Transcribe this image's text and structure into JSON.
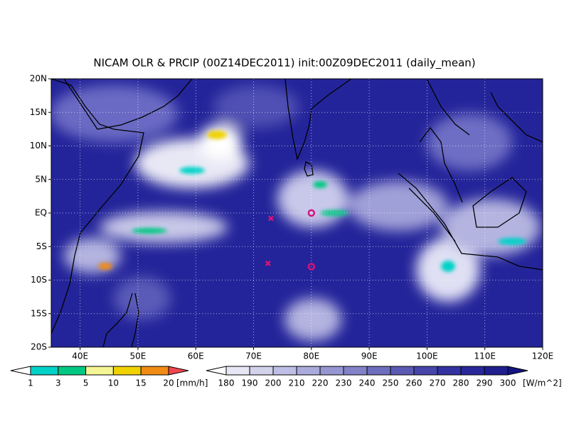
{
  "title": "NICAM OLR & PRCIP (00Z14DEC2011) init:00Z09DEC2011 (daily_mean)",
  "map": {
    "lonlim": [
      35,
      120
    ],
    "latlim": [
      -20,
      20
    ],
    "lonticks": [
      {
        "value": 40,
        "label": "40E"
      },
      {
        "value": 50,
        "label": "50E"
      },
      {
        "value": 60,
        "label": "60E"
      },
      {
        "value": 70,
        "label": "70E"
      },
      {
        "value": 80,
        "label": "80E"
      },
      {
        "value": 90,
        "label": "90E"
      },
      {
        "value": 100,
        "label": "100E"
      },
      {
        "value": 110,
        "label": "110E"
      },
      {
        "value": 120,
        "label": "120E"
      }
    ],
    "latticks": [
      {
        "value": 20,
        "label": "20N"
      },
      {
        "value": 15,
        "label": "15N"
      },
      {
        "value": 10,
        "label": "10N"
      },
      {
        "value": 5,
        "label": "5N"
      },
      {
        "value": 0,
        "label": "EQ"
      },
      {
        "value": -5,
        "label": "5S"
      },
      {
        "value": -10,
        "label": "10S"
      },
      {
        "value": -15,
        "label": "15S"
      },
      {
        "value": -20,
        "label": "20S"
      }
    ],
    "grid": true,
    "markers": [
      {
        "symbol": "x",
        "lon": 73,
        "lat": -0.8
      },
      {
        "symbol": "x",
        "lon": 72.5,
        "lat": -7.5
      },
      {
        "symbol": "o",
        "lon": 80,
        "lat": 0
      },
      {
        "symbol": "o",
        "lon": 80,
        "lat": -8
      }
    ],
    "marker_color": "#d4147a"
  },
  "precip_colorbar": {
    "levels": [
      1,
      3,
      5,
      10,
      15,
      20
    ],
    "unit": "[mm/h]",
    "colors": [
      "#ffffff",
      "#00d2c8",
      "#00c882",
      "#f5f596",
      "#f0d200",
      "#f08c14",
      "#f04650"
    ]
  },
  "olr_colorbar": {
    "levels": [
      180,
      190,
      200,
      210,
      220,
      230,
      240,
      250,
      260,
      270,
      280,
      290,
      300
    ],
    "unit": "[W/m^2]",
    "colors": [
      "#ffffff",
      "#e6e6f5",
      "#d2d2eb",
      "#bebee6",
      "#aaaadc",
      "#9696d2",
      "#8282c8",
      "#6e6ebe",
      "#5a5ab4",
      "#4646aa",
      "#3232a0",
      "#28289a",
      "#1e1e8c",
      "#141482"
    ]
  }
}
